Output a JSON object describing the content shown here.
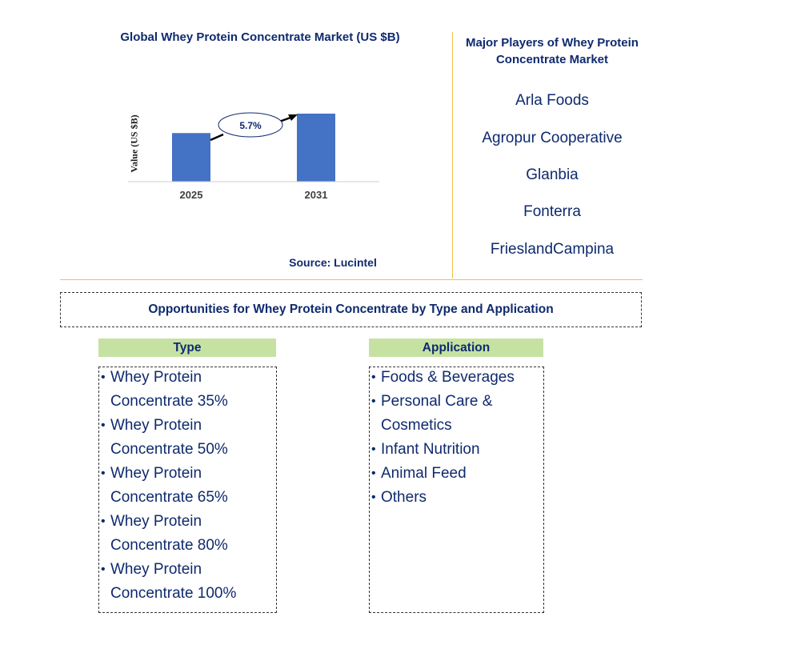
{
  "chart_data": {
    "type": "bar",
    "title": "Global Whey Protein Concentrate Market (US $B)",
    "ylabel": "Value (US $B)",
    "categories": [
      "2025",
      "2031"
    ],
    "values": [
      1.0,
      1.4
    ],
    "ylim": [
      0,
      1.4
    ],
    "growth_annotation": "5.7%",
    "bar_color": "#4472c4",
    "grid": false
  },
  "source": "Source: Lucintel",
  "players": {
    "title": "Major Players of Whey Protein Concentrate Market",
    "items": [
      "Arla Foods",
      "Agropur Cooperative",
      "Glanbia",
      "Fonterra",
      "FrieslandCampina"
    ]
  },
  "opportunities": {
    "title": "Opportunities for Whey Protein Concentrate by Type and Application",
    "type": {
      "header": "Type",
      "items": [
        [
          "Whey Protein",
          "Concentrate 35%"
        ],
        [
          "Whey Protein",
          "Concentrate 50%"
        ],
        [
          "Whey Protein",
          "Concentrate 65%"
        ],
        [
          "Whey Protein",
          "Concentrate 80%"
        ],
        [
          "Whey Protein",
          "Concentrate 100%"
        ]
      ]
    },
    "application": {
      "header": "Application",
      "items": [
        [
          "Foods & Beverages"
        ],
        [
          "Personal Care &",
          "Cosmetics"
        ],
        [
          "Infant Nutrition"
        ],
        [
          "Animal Feed"
        ],
        [
          "Others"
        ]
      ]
    }
  },
  "colors": {
    "accent": "#4472c4",
    "header_bg": "#c6e2a3",
    "divider": "#f0c24a",
    "text": "#0f2a6e"
  }
}
